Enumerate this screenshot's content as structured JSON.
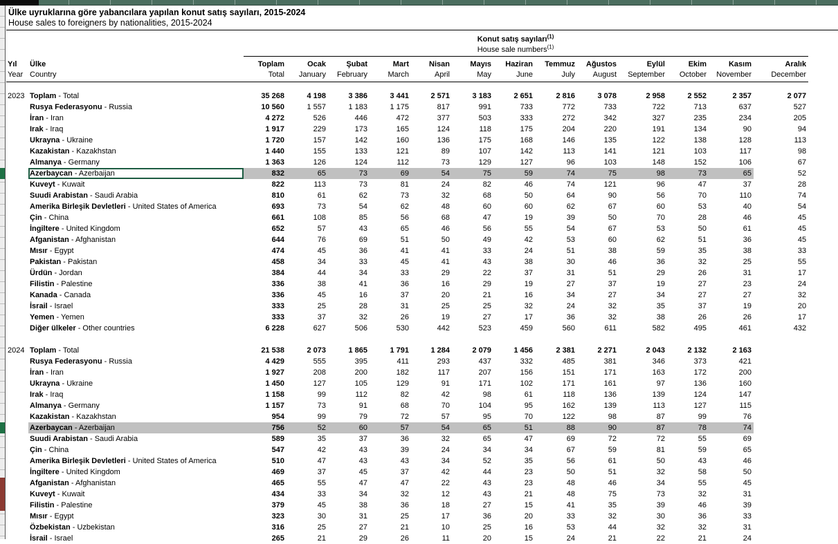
{
  "title": {
    "tr": "Ülke uyruklarına göre yabancılara yapılan konut satış sayıları, 2015-2024",
    "en": "House sales to foreigners by nationalities, 2015-2024"
  },
  "group_header": {
    "tr": "Konut satış sayıları",
    "en": "House sale numbers",
    "footnote": "(1)"
  },
  "columns": {
    "year": {
      "tr": "Yıl",
      "en": "Year"
    },
    "country": {
      "tr": "Ülke",
      "en": "Country"
    },
    "months": [
      {
        "tr": "Toplam",
        "en": "Total"
      },
      {
        "tr": "Ocak",
        "en": "January"
      },
      {
        "tr": "Şubat",
        "en": "February"
      },
      {
        "tr": "Mart",
        "en": "March"
      },
      {
        "tr": "Nisan",
        "en": "April"
      },
      {
        "tr": "Mayıs",
        "en": "May"
      },
      {
        "tr": "Haziran",
        "en": "June"
      },
      {
        "tr": "Temmuz",
        "en": "July"
      },
      {
        "tr": "Ağustos",
        "en": "August"
      },
      {
        "tr": "Eylül",
        "en": "September"
      },
      {
        "tr": "Ekim",
        "en": "October"
      },
      {
        "tr": "Kasım",
        "en": "November"
      },
      {
        "tr": "Aralık",
        "en": "December"
      }
    ]
  },
  "sections": [
    {
      "year": "2023",
      "rows": [
        {
          "tr": "Toplam",
          "en": "Total",
          "total": true,
          "v": [
            "35 268",
            "4 198",
            "3 386",
            "3 441",
            "2 571",
            "3 183",
            "2 651",
            "2 816",
            "3 078",
            "2 958",
            "2 552",
            "2 357",
            "2 077"
          ]
        },
        {
          "tr": "Rusya Federasyonu",
          "en": "Russia",
          "v": [
            "10 560",
            "1 557",
            "1 183",
            "1 175",
            "817",
            "991",
            "733",
            "772",
            "733",
            "722",
            "713",
            "637",
            "527"
          ]
        },
        {
          "tr": "İran",
          "en": "Iran",
          "v": [
            "4 272",
            "526",
            "446",
            "472",
            "377",
            "503",
            "333",
            "272",
            "342",
            "327",
            "235",
            "234",
            "205"
          ]
        },
        {
          "tr": "Irak",
          "en": "Iraq",
          "v": [
            "1 917",
            "229",
            "173",
            "165",
            "124",
            "118",
            "175",
            "204",
            "220",
            "191",
            "134",
            "90",
            "94"
          ]
        },
        {
          "tr": "Ukrayna",
          "en": "Ukraine",
          "v": [
            "1 720",
            "157",
            "142",
            "160",
            "136",
            "175",
            "168",
            "146",
            "135",
            "122",
            "138",
            "128",
            "113"
          ]
        },
        {
          "tr": "Kazakistan",
          "en": "Kazakhstan",
          "v": [
            "1 440",
            "155",
            "133",
            "121",
            "89",
            "107",
            "142",
            "113",
            "141",
            "121",
            "103",
            "117",
            "98"
          ]
        },
        {
          "tr": "Almanya",
          "en": "Germany",
          "v": [
            "1 363",
            "126",
            "124",
            "112",
            "73",
            "129",
            "127",
            "96",
            "103",
            "148",
            "152",
            "106",
            "67"
          ]
        },
        {
          "tr": "Azerbaycan",
          "en": "Azerbaijan",
          "hl": true,
          "sel": true,
          "v": [
            "832",
            "65",
            "73",
            "69",
            "54",
            "75",
            "59",
            "74",
            "75",
            "98",
            "73",
            "65",
            "52"
          ]
        },
        {
          "tr": "Kuveyt",
          "en": "Kuwait",
          "v": [
            "822",
            "113",
            "73",
            "81",
            "24",
            "82",
            "46",
            "74",
            "121",
            "96",
            "47",
            "37",
            "28"
          ]
        },
        {
          "tr": "Suudi Arabistan",
          "en": "Saudi Arabia",
          "v": [
            "810",
            "61",
            "62",
            "73",
            "32",
            "68",
            "50",
            "64",
            "90",
            "56",
            "70",
            "110",
            "74"
          ]
        },
        {
          "tr": "Amerika Birleşik Devletleri",
          "en": "United States of America",
          "v": [
            "693",
            "73",
            "54",
            "62",
            "48",
            "60",
            "60",
            "62",
            "67",
            "60",
            "53",
            "40",
            "54"
          ]
        },
        {
          "tr": "Çin",
          "en": "China",
          "v": [
            "661",
            "108",
            "85",
            "56",
            "68",
            "47",
            "19",
            "39",
            "50",
            "70",
            "28",
            "46",
            "45"
          ]
        },
        {
          "tr": "İngiltere",
          "en": "United Kingdom",
          "v": [
            "652",
            "57",
            "43",
            "65",
            "46",
            "56",
            "55",
            "54",
            "67",
            "53",
            "50",
            "61",
            "45"
          ]
        },
        {
          "tr": "Afganistan",
          "en": "Afghanistan",
          "v": [
            "644",
            "76",
            "69",
            "51",
            "50",
            "49",
            "42",
            "53",
            "60",
            "62",
            "51",
            "36",
            "45"
          ]
        },
        {
          "tr": "Mısır",
          "en": "Egypt",
          "v": [
            "474",
            "45",
            "36",
            "41",
            "41",
            "33",
            "24",
            "51",
            "38",
            "59",
            "35",
            "38",
            "33"
          ]
        },
        {
          "tr": "Pakistan",
          "en": "Pakistan",
          "v": [
            "458",
            "34",
            "33",
            "45",
            "41",
            "43",
            "38",
            "30",
            "46",
            "36",
            "32",
            "25",
            "55"
          ]
        },
        {
          "tr": "Ürdün",
          "en": "Jordan",
          "v": [
            "384",
            "44",
            "34",
            "33",
            "29",
            "22",
            "37",
            "31",
            "51",
            "29",
            "26",
            "31",
            "17"
          ]
        },
        {
          "tr": "Filistin",
          "en": "Palestine",
          "v": [
            "336",
            "38",
            "41",
            "36",
            "16",
            "29",
            "19",
            "27",
            "37",
            "19",
            "27",
            "23",
            "24"
          ]
        },
        {
          "tr": "Kanada",
          "en": "Canada",
          "v": [
            "336",
            "45",
            "16",
            "37",
            "20",
            "21",
            "16",
            "34",
            "27",
            "34",
            "27",
            "27",
            "32"
          ]
        },
        {
          "tr": "İsrail",
          "en": "Israel",
          "v": [
            "333",
            "25",
            "28",
            "31",
            "25",
            "25",
            "32",
            "24",
            "32",
            "35",
            "37",
            "19",
            "20"
          ]
        },
        {
          "tr": "Yemen",
          "en": "Yemen",
          "v": [
            "333",
            "37",
            "32",
            "26",
            "19",
            "27",
            "17",
            "36",
            "32",
            "38",
            "26",
            "26",
            "17"
          ]
        },
        {
          "tr": "Diğer ülkeler",
          "en": "Other countries",
          "v": [
            "6 228",
            "627",
            "506",
            "530",
            "442",
            "523",
            "459",
            "560",
            "611",
            "582",
            "495",
            "461",
            "432"
          ]
        }
      ]
    },
    {
      "year": "2024",
      "rows": [
        {
          "tr": "Toplam",
          "en": "Total",
          "total": true,
          "v": [
            "21 538",
            "2 073",
            "1 865",
            "1 791",
            "1 284",
            "2 079",
            "1 456",
            "2 381",
            "2 271",
            "2 043",
            "2 132",
            "2 163",
            ""
          ]
        },
        {
          "tr": "Rusya Federasyonu",
          "en": "Russia",
          "v": [
            "4 429",
            "555",
            "395",
            "411",
            "293",
            "437",
            "332",
            "485",
            "381",
            "346",
            "373",
            "421",
            ""
          ]
        },
        {
          "tr": "İran",
          "en": "Iran",
          "v": [
            "1 927",
            "208",
            "200",
            "182",
            "117",
            "207",
            "156",
            "151",
            "171",
            "163",
            "172",
            "200",
            ""
          ]
        },
        {
          "tr": "Ukrayna",
          "en": "Ukraine",
          "v": [
            "1 450",
            "127",
            "105",
            "129",
            "91",
            "171",
            "102",
            "171",
            "161",
            "97",
            "136",
            "160",
            ""
          ]
        },
        {
          "tr": "Irak",
          "en": "Iraq",
          "v": [
            "1 158",
            "99",
            "112",
            "82",
            "42",
            "98",
            "61",
            "118",
            "136",
            "139",
            "124",
            "147",
            ""
          ]
        },
        {
          "tr": "Almanya",
          "en": "Germany",
          "v": [
            "1 157",
            "73",
            "91",
            "68",
            "70",
            "104",
            "95",
            "162",
            "139",
            "113",
            "127",
            "115",
            ""
          ]
        },
        {
          "tr": "Kazakistan",
          "en": "Kazakhstan",
          "v": [
            "954",
            "99",
            "79",
            "72",
            "57",
            "95",
            "70",
            "122",
            "98",
            "87",
            "99",
            "76",
            ""
          ]
        },
        {
          "tr": "Azerbaycan",
          "en": "Azerbaijan",
          "hl": true,
          "hlname": true,
          "v": [
            "756",
            "52",
            "60",
            "57",
            "54",
            "65",
            "51",
            "88",
            "90",
            "87",
            "78",
            "74",
            ""
          ]
        },
        {
          "tr": "Suudi Arabistan",
          "en": "Saudi Arabia",
          "v": [
            "589",
            "35",
            "37",
            "36",
            "32",
            "65",
            "47",
            "69",
            "72",
            "72",
            "55",
            "69",
            ""
          ]
        },
        {
          "tr": "Çin",
          "en": "China",
          "v": [
            "547",
            "42",
            "43",
            "39",
            "24",
            "34",
            "34",
            "67",
            "59",
            "81",
            "59",
            "65",
            ""
          ]
        },
        {
          "tr": "Amerika Birleşik Devletleri",
          "en": "United States of America",
          "v": [
            "510",
            "47",
            "43",
            "43",
            "34",
            "52",
            "35",
            "56",
            "61",
            "50",
            "43",
            "46",
            ""
          ]
        },
        {
          "tr": "İngiltere",
          "en": "United Kingdom",
          "v": [
            "469",
            "37",
            "45",
            "37",
            "42",
            "44",
            "23",
            "50",
            "51",
            "32",
            "58",
            "50",
            ""
          ]
        },
        {
          "tr": "Afganistan",
          "en": "Afghanistan",
          "v": [
            "465",
            "55",
            "47",
            "47",
            "22",
            "43",
            "23",
            "48",
            "46",
            "34",
            "55",
            "45",
            ""
          ]
        },
        {
          "tr": "Kuveyt",
          "en": "Kuwait",
          "v": [
            "434",
            "33",
            "34",
            "32",
            "12",
            "43",
            "21",
            "48",
            "75",
            "73",
            "32",
            "31",
            ""
          ]
        },
        {
          "tr": "Filistin",
          "en": "Palestine",
          "v": [
            "379",
            "45",
            "38",
            "36",
            "18",
            "27",
            "15",
            "41",
            "35",
            "39",
            "46",
            "39",
            ""
          ]
        },
        {
          "tr": "Mısır",
          "en": "Egypt",
          "v": [
            "323",
            "30",
            "31",
            "25",
            "17",
            "36",
            "20",
            "33",
            "32",
            "30",
            "36",
            "33",
            ""
          ]
        },
        {
          "tr": "Özbekistan",
          "en": "Uzbekistan",
          "v": [
            "316",
            "25",
            "27",
            "21",
            "10",
            "25",
            "16",
            "53",
            "44",
            "32",
            "32",
            "31",
            ""
          ]
        },
        {
          "tr": "İsrail",
          "en": "Israel",
          "v": [
            "265",
            "21",
            "29",
            "26",
            "11",
            "20",
            "15",
            "24",
            "21",
            "22",
            "21",
            "24",
            ""
          ]
        }
      ]
    }
  ],
  "left_strip_markers": [
    {
      "section": 0,
      "from": 7,
      "to": 7,
      "color_key": "marker_green"
    },
    {
      "section": 1,
      "from": 7,
      "to": 7,
      "color_key": "marker_green"
    },
    {
      "section": 1,
      "from": 12,
      "to": 14,
      "color_key": "marker_maroon"
    }
  ],
  "colors": {
    "sheet_header_strip": "#4b6e5f",
    "corner_box": "#0d0d0d",
    "row_highlight": "#c0c0c0",
    "selection_border": "#1d5c42",
    "marker_green": "#1e7044",
    "marker_maroon": "#8b3a32"
  }
}
